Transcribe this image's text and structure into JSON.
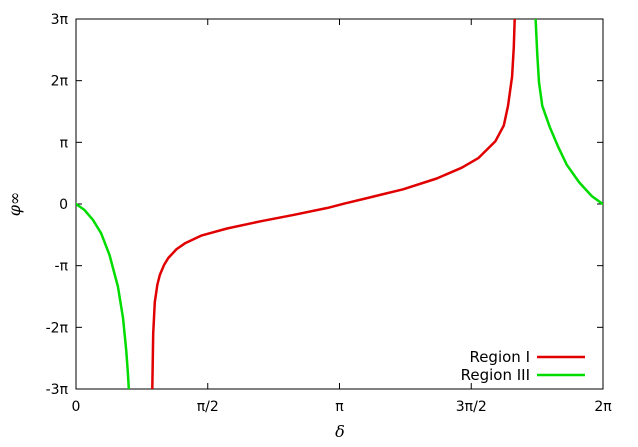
{
  "chart_data": {
    "type": "line",
    "title": "",
    "xlabel": "δ",
    "ylabel": "φ∞",
    "xlim": [
      0,
      6.283185307179586
    ],
    "ylim": [
      -9.42477796076938,
      9.42477796076938
    ],
    "grid": false,
    "legend_position": "bottom-right",
    "x_ticks": [
      {
        "value": 0,
        "label": "0"
      },
      {
        "value": 1.5707963267948966,
        "label": "π/2"
      },
      {
        "value": 3.141592653589793,
        "label": "π"
      },
      {
        "value": 4.71238898038469,
        "label": "3π/2"
      },
      {
        "value": 6.283185307179586,
        "label": "2π"
      }
    ],
    "y_ticks": [
      {
        "value": -9.42477796076938,
        "label": "-3π"
      },
      {
        "value": -6.283185307179586,
        "label": "-2π"
      },
      {
        "value": -3.141592653589793,
        "label": "-π"
      },
      {
        "value": 0,
        "label": "0"
      },
      {
        "value": 3.141592653589793,
        "label": "π"
      },
      {
        "value": 6.283185307179586,
        "label": "2π"
      },
      {
        "value": 9.42477796076938,
        "label": "3π"
      }
    ],
    "series": [
      {
        "name": "Region I",
        "color": "#e00000",
        "segments": [
          [
            [
              0.91,
              -9.42
            ],
            [
              0.92,
              -6.6
            ],
            [
              0.94,
              -5.0
            ],
            [
              0.97,
              -4.1
            ],
            [
              1.0,
              -3.6
            ],
            [
              1.05,
              -3.1
            ],
            [
              1.1,
              -2.75
            ],
            [
              1.2,
              -2.3
            ],
            [
              1.3,
              -2.0
            ],
            [
              1.5,
              -1.6
            ],
            [
              1.8,
              -1.25
            ],
            [
              2.2,
              -0.88
            ],
            [
              2.6,
              -0.55
            ],
            [
              3.0,
              -0.2
            ],
            [
              3.2,
              0.02
            ],
            [
              3.5,
              0.33
            ],
            [
              3.9,
              0.75
            ],
            [
              4.3,
              1.3
            ],
            [
              4.6,
              1.85
            ],
            [
              4.8,
              2.35
            ],
            [
              5.0,
              3.2
            ],
            [
              5.1,
              4.0
            ],
            [
              5.15,
              5.0
            ],
            [
              5.2,
              6.5
            ],
            [
              5.22,
              8.0
            ],
            [
              5.23,
              9.42
            ]
          ]
        ]
      },
      {
        "name": "Region III",
        "color": "#00dc00",
        "segments": [
          [
            [
              0.0,
              0.0
            ],
            [
              0.1,
              -0.3
            ],
            [
              0.2,
              -0.8
            ],
            [
              0.3,
              -1.5
            ],
            [
              0.4,
              -2.6
            ],
            [
              0.5,
              -4.2
            ],
            [
              0.56,
              -5.8
            ],
            [
              0.6,
              -7.5
            ],
            [
              0.62,
              -8.7
            ],
            [
              0.63,
              -9.42
            ]
          ],
          [
            [
              5.48,
              9.42
            ],
            [
              5.5,
              7.6
            ],
            [
              5.52,
              6.2
            ],
            [
              5.56,
              5.0
            ],
            [
              5.65,
              3.9
            ],
            [
              5.75,
              2.9
            ],
            [
              5.85,
              2.0
            ],
            [
              6.0,
              1.1
            ],
            [
              6.15,
              0.4
            ],
            [
              6.28,
              0.0
            ]
          ]
        ]
      }
    ]
  }
}
